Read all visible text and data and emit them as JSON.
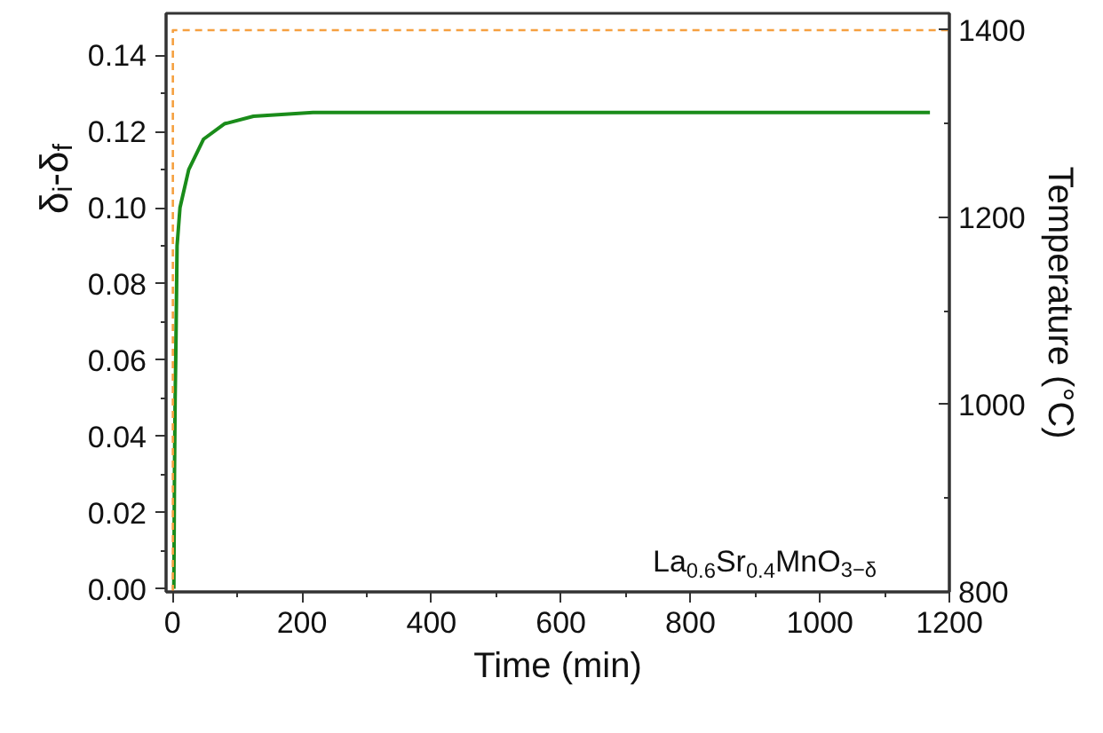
{
  "chart_data": {
    "type": "line",
    "xlabel": "Time (min)",
    "ylabel": "δ$_{i}$-δ$_{f}$",
    "y2label": "Temperature (°C)",
    "annotations": [
      "La$_{0.6}$Sr$_{0.4}$MnO$_{3−δ}$"
    ],
    "xlim": [
      -10,
      1200
    ],
    "ylim": [
      -0.0008,
      0.151
    ],
    "y2lim": [
      800,
      1418
    ],
    "xticks": [
      0,
      {
        "value": 100,
        "label": null
      },
      200,
      {
        "value": 300,
        "label": null
      },
      400,
      {
        "value": 500,
        "label": null
      },
      600,
      {
        "value": 700,
        "label": null
      },
      800,
      {
        "value": 900,
        "label": null
      },
      1000,
      {
        "value": 1100,
        "label": null
      },
      1200
    ],
    "yticks": [
      {
        "value": 0,
        "label": "0.00"
      },
      {
        "value": 0.01,
        "label": null
      },
      {
        "value": 0.02,
        "label": "0.02"
      },
      {
        "value": 0.03,
        "label": null
      },
      {
        "value": 0.04,
        "label": "0.04"
      },
      {
        "value": 0.05,
        "label": null
      },
      {
        "value": 0.06,
        "label": "0.06"
      },
      {
        "value": 0.07,
        "label": null
      },
      {
        "value": 0.08,
        "label": "0.08"
      },
      {
        "value": 0.09,
        "label": null
      },
      {
        "value": 0.1,
        "label": "0.10"
      },
      {
        "value": 0.11,
        "label": null
      },
      {
        "value": 0.12,
        "label": "0.12"
      },
      {
        "value": 0.13,
        "label": null
      },
      {
        "value": 0.14,
        "label": "0.14"
      }
    ],
    "y2ticks": [
      800,
      {
        "value": 900,
        "label": null
      },
      1000,
      {
        "value": 1100,
        "label": null
      },
      1200,
      {
        "value": 1300,
        "label": null
      },
      1400
    ],
    "grid": false,
    "series": [
      {
        "color": "#1a8c1a",
        "line_style": "solid",
        "x": [
          2,
          3,
          4,
          5,
          7,
          11.5,
          25,
          48,
          80,
          125,
          217,
          400,
          700,
          1000,
          1170
        ],
        "values": [
          0,
          0.03,
          0.05,
          0.061,
          0.09,
          0.1,
          0.11,
          0.118,
          0.122,
          0.124,
          0.125,
          0.125,
          0.125,
          0.125,
          0.125
        ]
      },
      {
        "color": "#f5a040",
        "line_style": "dashed",
        "axis": "y2",
        "x": [
          0.5,
          0.5,
          1200
        ],
        "values": [
          800,
          1400,
          1400
        ]
      }
    ]
  }
}
